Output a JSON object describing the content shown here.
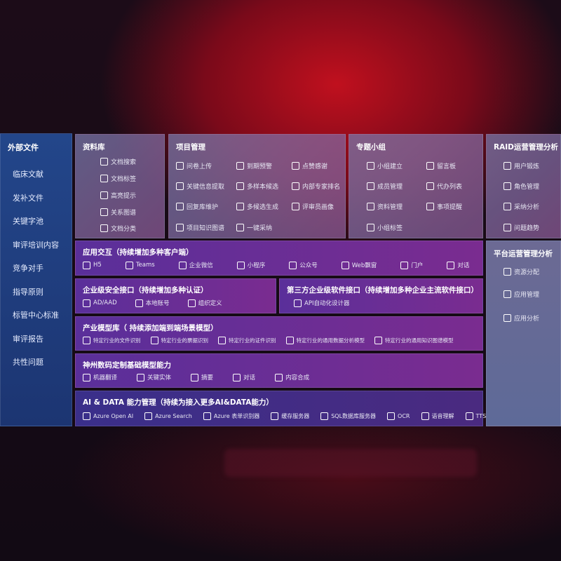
{
  "external": {
    "title": "外部文件",
    "items": [
      "临床文献",
      "发补文件",
      "关键字池",
      "审评培训内容",
      "竞争对手",
      "指导原则",
      "标管中心标准",
      "审评报告",
      "共性问题"
    ]
  },
  "library": {
    "title": "资料库",
    "items": [
      {
        "label": "文档搜索",
        "icon": "doc-search-icon"
      },
      {
        "label": "文档标签",
        "icon": "tag-icon"
      },
      {
        "label": "高亮提示",
        "icon": "pen-icon"
      },
      {
        "label": "关系图谱",
        "icon": "graph-icon"
      },
      {
        "label": "文档分类",
        "icon": "doc-category-icon"
      }
    ]
  },
  "project": {
    "title": "项目管理",
    "items": [
      {
        "label": "问卷上传",
        "icon": "cloud-upload-icon"
      },
      {
        "label": "到期预警",
        "icon": "alarm-icon"
      },
      {
        "label": "点赞感谢",
        "icon": "thumbs-up-icon"
      },
      {
        "label": "关键信息提取",
        "icon": "window-icon"
      },
      {
        "label": "多样本候选",
        "icon": "reply-icon"
      },
      {
        "label": "内部专家排名",
        "icon": "ranking-icon"
      },
      {
        "label": "回复库维护",
        "icon": "edit-icon"
      },
      {
        "label": "多候选生成",
        "icon": "puzzle-icon"
      },
      {
        "label": "评审员画像",
        "icon": "user-icon"
      },
      {
        "label": "项目知识图谱",
        "icon": "graph-icon"
      },
      {
        "label": "一键采纳",
        "icon": "reply-icon"
      }
    ]
  },
  "group": {
    "title": "专题小组",
    "items": [
      {
        "label": "小组建立",
        "icon": "group-icon"
      },
      {
        "label": "留言板",
        "icon": "bbs-icon"
      },
      {
        "label": "成员管理",
        "icon": "user-add-icon"
      },
      {
        "label": "代办列表",
        "icon": "clipboard-icon"
      },
      {
        "label": "资料管理",
        "icon": "folder-icon"
      },
      {
        "label": "事项提醒",
        "icon": "bell-icon"
      },
      {
        "label": "小组标签",
        "icon": "tag-icon"
      }
    ]
  },
  "raid": {
    "title": "RAID运营管理分析",
    "items": [
      {
        "label": "用户锻炼",
        "icon": "id-card-icon"
      },
      {
        "label": "角色管理",
        "icon": "users-icon"
      },
      {
        "label": "采纳分析",
        "icon": "qa-icon"
      },
      {
        "label": "问题趋势",
        "icon": "trend-icon"
      }
    ]
  },
  "platform": {
    "title": "平台运营管理分析",
    "items": [
      {
        "label": "资源分配",
        "icon": "list-icon"
      },
      {
        "label": "应用管理",
        "icon": "apps-icon"
      },
      {
        "label": "应用分析",
        "icon": "chart-icon"
      }
    ]
  },
  "app": {
    "title": "应用交互（持续增加多种客户端）",
    "items": [
      "H5",
      "Teams",
      "企业微信",
      "小程序",
      "公众号",
      "Web飘窗",
      "门户",
      "对话"
    ]
  },
  "security": {
    "title": "企业级安全接口（持续增加多种认证）",
    "items": [
      "AD/AAD",
      "本地账号",
      "组织定义"
    ]
  },
  "thirdparty": {
    "title": "第三方企业级软件接口（持续增加多种企业主流软件接口）",
    "items": [
      "API自动化设计器"
    ]
  },
  "industry": {
    "title": "产业模型库（ 持续添加端到端场景模型）",
    "items": [
      "特定行业的文件识别",
      "特定行业的票据识别",
      "特定行业的证件识别",
      "特定行业的通用数据分析模型",
      "特定行业的通用知识图谱模型"
    ]
  },
  "base": {
    "title": "神州数码定制基础模型能力",
    "items": [
      "机器翻译",
      "关键实体",
      "摘要",
      "对话",
      "内容合成"
    ]
  },
  "ai": {
    "title": "AI & DATA 能力管理（持续为接入更多AI&DATA能力）",
    "items": [
      "Azure Open AI",
      "Azure Search",
      "Azure 表单识别器",
      "缓存服务器",
      "SQL数据库服务器",
      "OCR",
      "语音理解",
      "TTS"
    ]
  }
}
